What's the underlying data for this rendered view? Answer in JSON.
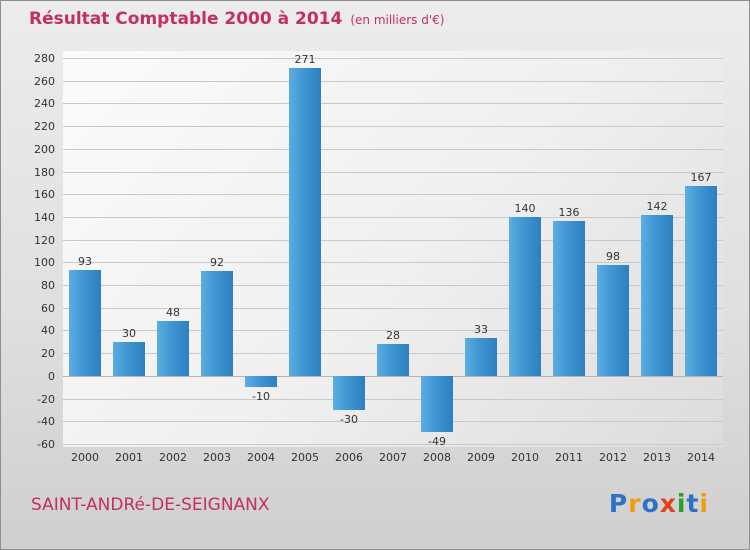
{
  "header": {
    "title": "Résultat Comptable 2000 à 2014",
    "subtitle": "(en milliers d'€)"
  },
  "chart_data": {
    "type": "bar",
    "title": "Résultat Comptable 2000 à 2014",
    "subtitle": "(en milliers d'€)",
    "categories": [
      "2000",
      "2001",
      "2002",
      "2003",
      "2004",
      "2005",
      "2006",
      "2007",
      "2008",
      "2009",
      "2010",
      "2011",
      "2012",
      "2013",
      "2014"
    ],
    "values": [
      93,
      30,
      48,
      92,
      -10,
      271,
      -30,
      28,
      -49,
      33,
      140,
      136,
      98,
      142,
      167
    ],
    "xlabel": "",
    "ylabel": "",
    "ylim": [
      -60,
      280
    ],
    "ytick_step": 20,
    "grid": true,
    "legend": "none",
    "bar_color_light": "#5cade2",
    "bar_color_dark": "#2e7fc0"
  },
  "footer": {
    "location": "SAINT-ANDRé-DE-SEIGNANX",
    "logo_letters": [
      {
        "char": "P",
        "color": "#2e72c8"
      },
      {
        "char": "r",
        "color": "#f39c12"
      },
      {
        "char": "o",
        "color": "#2e72c8"
      },
      {
        "char": "x",
        "color": "#e2411d"
      },
      {
        "char": "i",
        "color": "#2ca02c"
      },
      {
        "char": "t",
        "color": "#2e72c8"
      },
      {
        "char": "i",
        "color": "#f39c12"
      }
    ]
  },
  "colors": {
    "title_pink": "#c22f63",
    "grid": "#c9c9c9",
    "text": "#333333",
    "background_outer": "#e0e0e0",
    "background_plot": "#f3f3f3"
  }
}
